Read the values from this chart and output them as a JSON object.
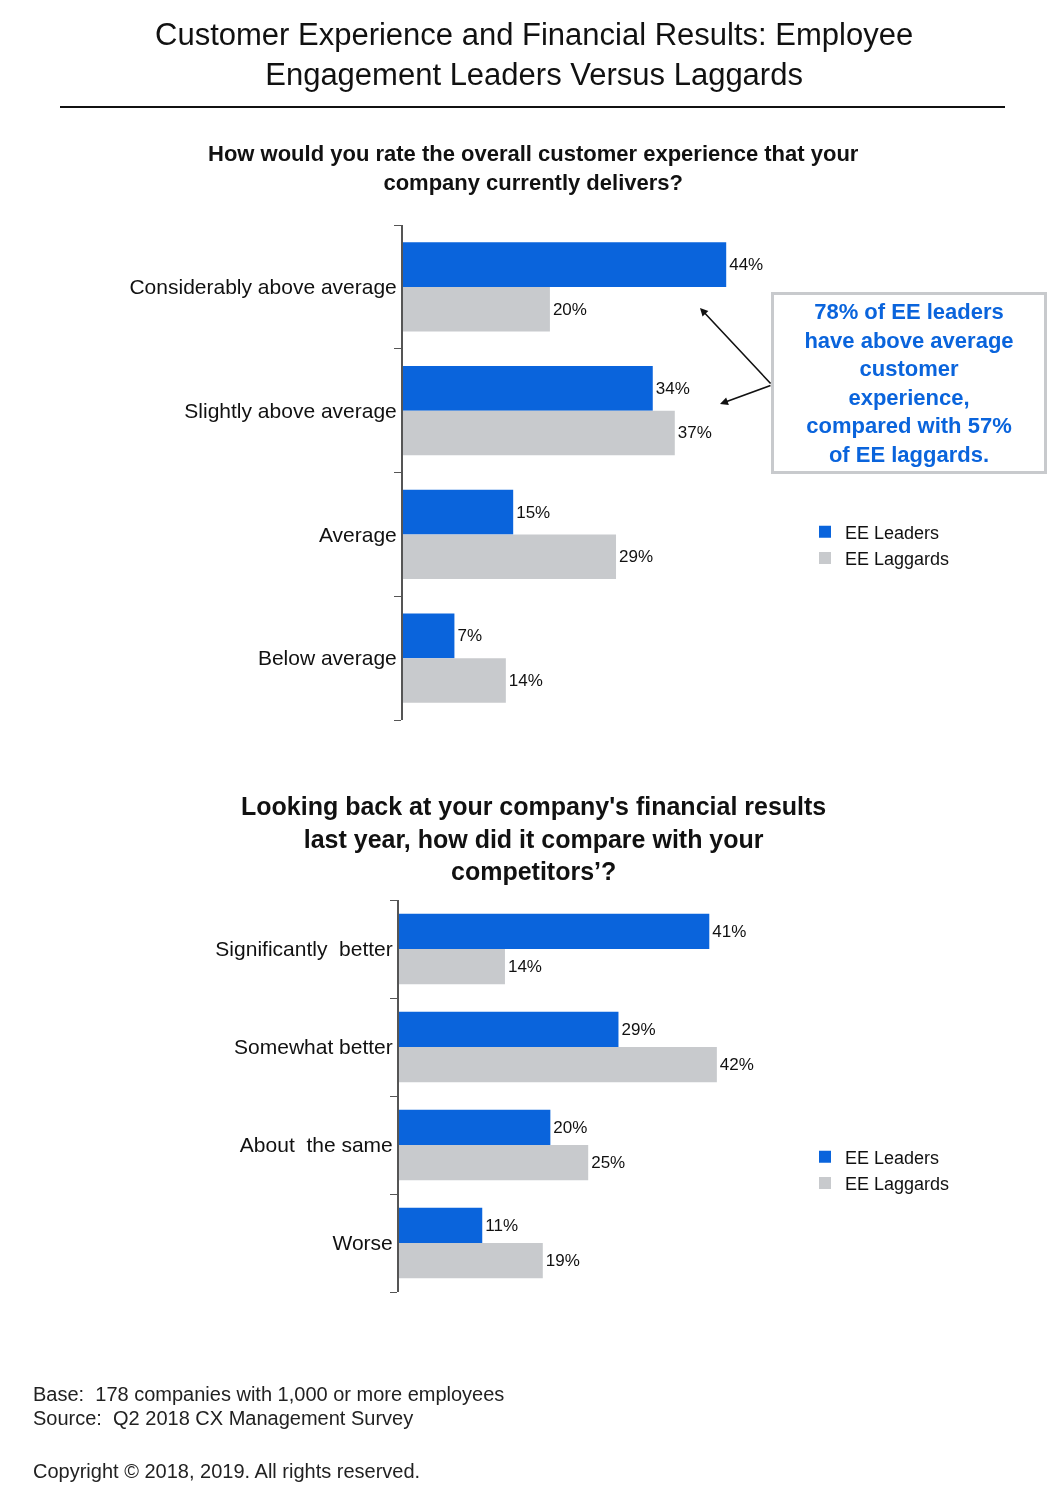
{
  "chart_data": [
    {
      "type": "bar",
      "orientation": "horizontal",
      "title": "Customer Experience and Financial Results: Employee Engagement Leaders Versus Laggards",
      "subtitle": "How would you rate the overall customer experience that your company currently delivers?",
      "categories": [
        "Considerably above average",
        "Slightly above average",
        "Average",
        "Below average"
      ],
      "series": [
        {
          "name": "EE Leaders",
          "color": "#0a64dc",
          "values": [
            44,
            34,
            15,
            7
          ],
          "value_labels": [
            "44%",
            "34%",
            "15%",
            "7%"
          ]
        },
        {
          "name": "EE Laggards",
          "color": "#c8cacd",
          "values": [
            20,
            37,
            29,
            14
          ],
          "value_labels": [
            "20%",
            "37%",
            "29%",
            "14%"
          ]
        }
      ],
      "annotations": [
        "78% of EE leaders have above average customer experience, compared with 57% of EE laggards."
      ],
      "legend": "right"
    },
    {
      "type": "bar",
      "orientation": "horizontal",
      "title": "Looking back at your company's financial results last year, how did it compare with your competitors’?",
      "categories": [
        "Significantly  better",
        "Somewhat better",
        "About  the same",
        "Worse"
      ],
      "series": [
        {
          "name": "EE Leaders",
          "color": "#0a64dc",
          "values": [
            41,
            29,
            20,
            11
          ],
          "value_labels": [
            "41%",
            "29%",
            "20%",
            "11%"
          ]
        },
        {
          "name": "EE Laggards",
          "color": "#c8cacd",
          "values": [
            14,
            42,
            25,
            19
          ],
          "value_labels": [
            "14%",
            "42%",
            "25%",
            "19%"
          ]
        }
      ],
      "annotations": [
        "Base:  178 companies with 1,000 or more employees",
        "Source:  Q2 2018 CX Management Survey",
        "Copyright © 2018, 2019. All rights reserved."
      ],
      "legend": "right"
    }
  ]
}
